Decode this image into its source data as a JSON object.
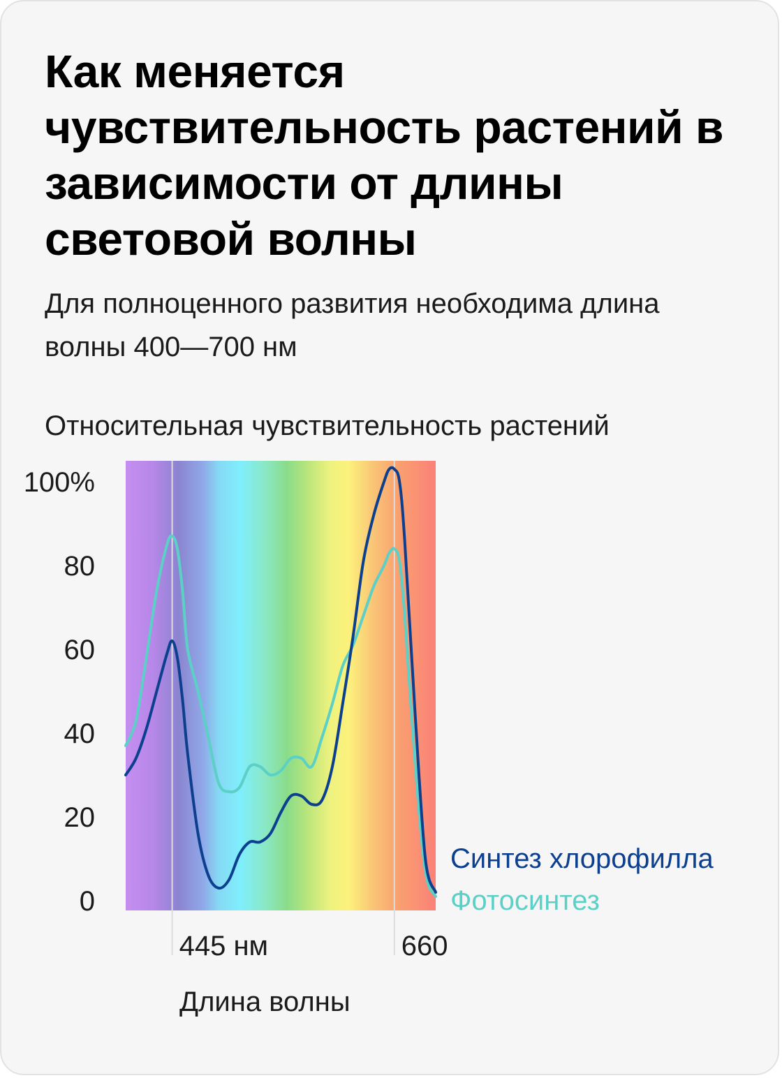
{
  "title": "Как меняется чувствительность растений в зависимости от длины световой волны",
  "subtitle": "Для полноценного развития необходима длина волны 400—700 нм",
  "colors": {
    "chlorophyll": "#0d3f8f",
    "photosynthesis": "#5cd0c6",
    "card_background": "#f6f6f6"
  },
  "chart_data": {
    "type": "line",
    "ylabel": "Относительная чувствительность растений",
    "xlabel": "Длина волны",
    "y_ticks": [
      "100%",
      "80",
      "60",
      "40",
      "20",
      "0"
    ],
    "y_tick_values": [
      100,
      80,
      60,
      40,
      20,
      0
    ],
    "ylim": [
      0,
      100
    ],
    "xlim": [
      400,
      700
    ],
    "x_markers": [
      {
        "value": 445,
        "label": "445 нм"
      },
      {
        "value": 660,
        "label": "660"
      }
    ],
    "background": "visible light spectrum gradient (violet to red)",
    "grid": false,
    "legend_position": "right",
    "series": [
      {
        "name": "Синтез хлорофилла",
        "color": "#0d3f8f",
        "x": [
          400,
          410,
          420,
          430,
          440,
          445,
          450,
          455,
          460,
          470,
          480,
          490,
          500,
          510,
          520,
          530,
          540,
          550,
          560,
          570,
          580,
          590,
          600,
          610,
          620,
          630,
          640,
          650,
          655,
          660,
          665,
          670,
          680,
          690,
          700
        ],
        "y": [
          30,
          34,
          41,
          50,
          59,
          62,
          58,
          48,
          35,
          16,
          6,
          3,
          5,
          11,
          14,
          14,
          16,
          21,
          25,
          25,
          23,
          24,
          32,
          47,
          63,
          81,
          92,
          100,
          103,
          103,
          100,
          86,
          45,
          10,
          2
        ]
      },
      {
        "name": "Фотосинтез",
        "color": "#5cd0c6",
        "x": [
          400,
          410,
          420,
          430,
          440,
          445,
          450,
          455,
          460,
          470,
          480,
          490,
          500,
          510,
          520,
          530,
          540,
          550,
          560,
          570,
          580,
          590,
          600,
          610,
          620,
          630,
          640,
          650,
          655,
          660,
          665,
          670,
          680,
          690,
          700
        ],
        "y": [
          37,
          43,
          58,
          74,
          85,
          87,
          84,
          74,
          60,
          50,
          39,
          28,
          26,
          27,
          32,
          32,
          30,
          31,
          34,
          34,
          32,
          39,
          47,
          56,
          61,
          68,
          75,
          80,
          83,
          84,
          81,
          68,
          33,
          7,
          1
        ]
      }
    ]
  }
}
